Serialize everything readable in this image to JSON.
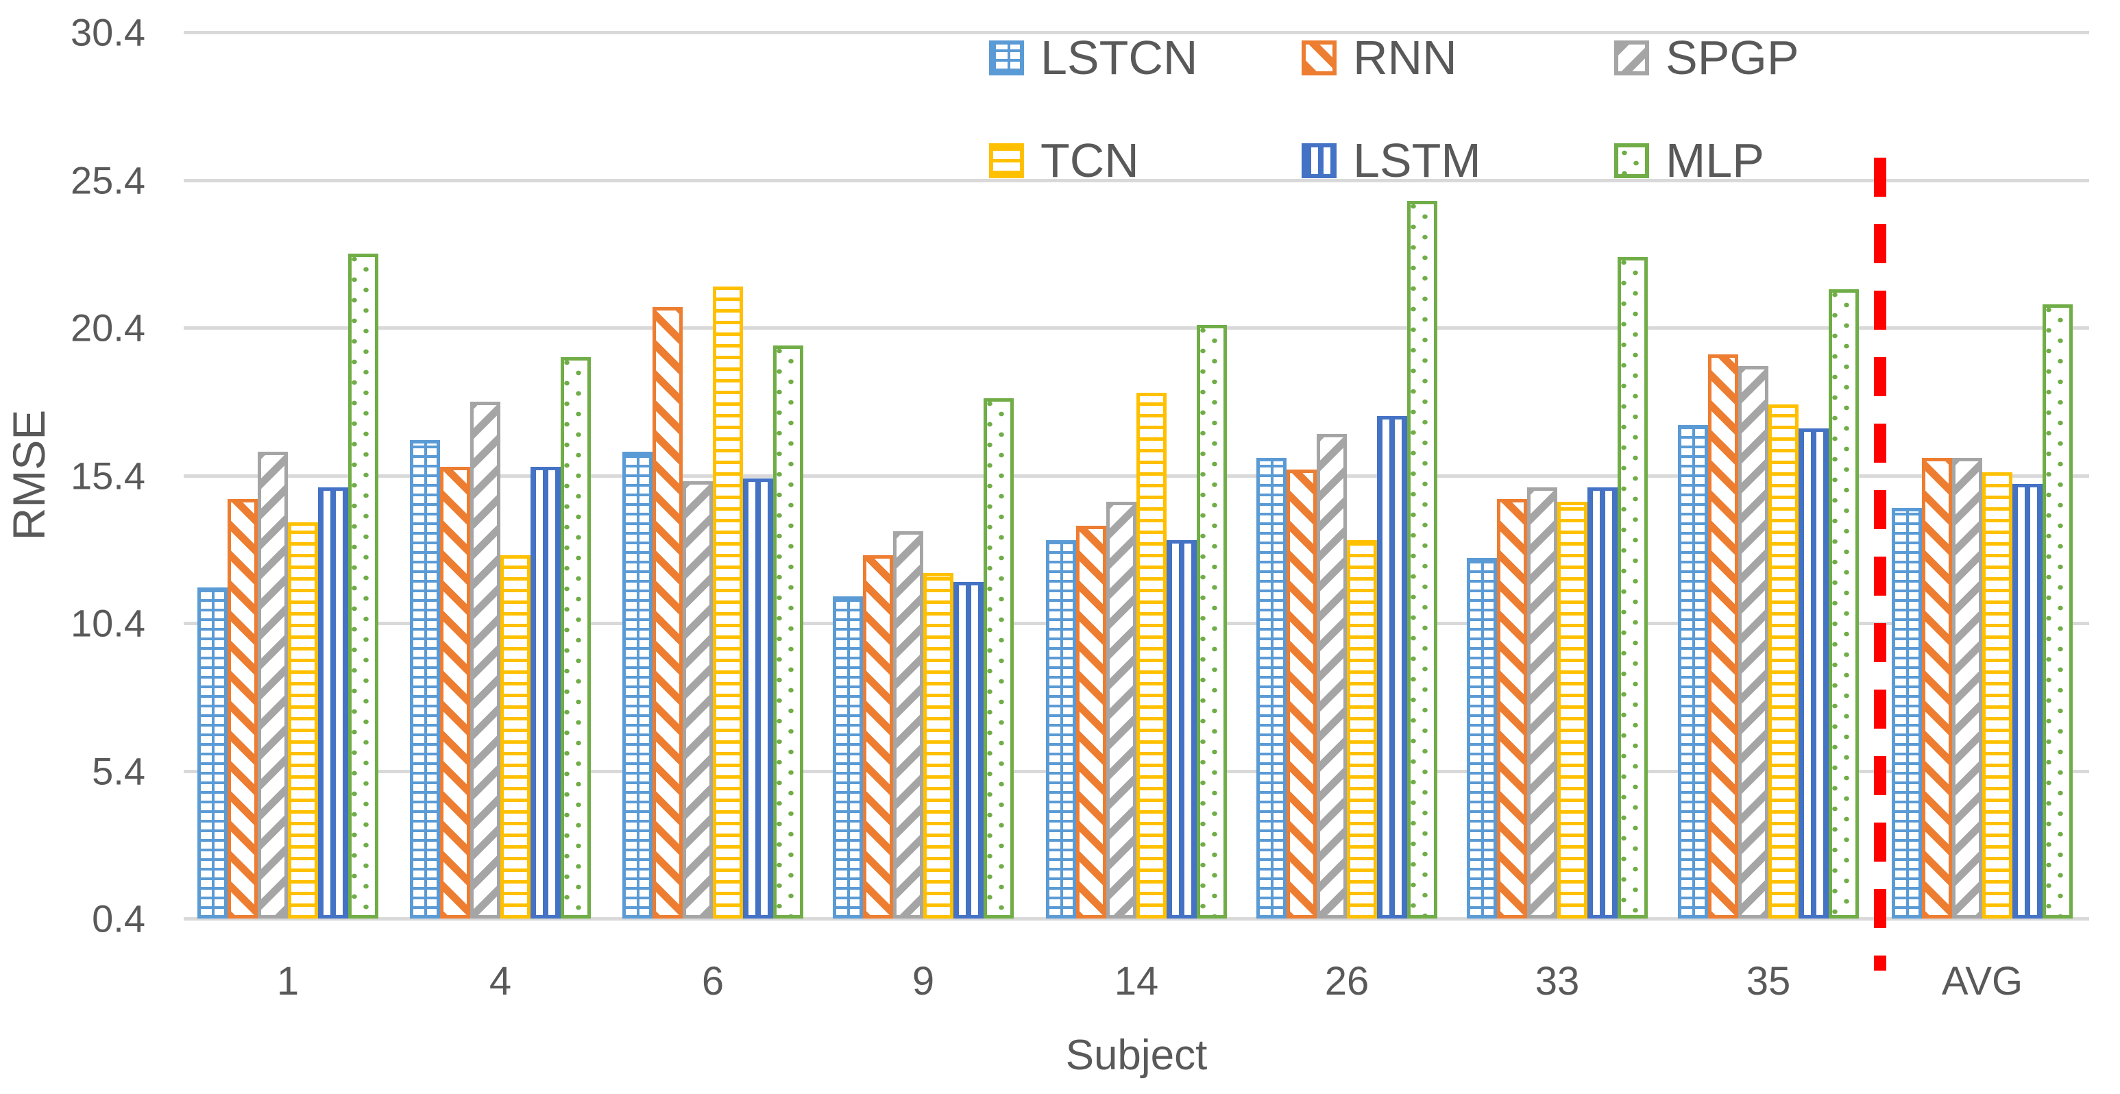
{
  "chart_data": {
    "type": "bar",
    "title": "",
    "xlabel": "Subject",
    "ylabel": "RMSE",
    "categories": [
      "1",
      "4",
      "6",
      "9",
      "14",
      "26",
      "33",
      "35",
      "AVG"
    ],
    "series": [
      {
        "name": "LSTCN",
        "color": "#5B9BD5",
        "pattern": "grid",
        "values": [
          11.6,
          16.6,
          16.2,
          11.3,
          13.2,
          16.0,
          12.6,
          17.1,
          14.3
        ]
      },
      {
        "name": "RNN",
        "color": "#ED7D31",
        "pattern": "diag-down",
        "values": [
          14.6,
          15.7,
          21.1,
          12.7,
          13.7,
          15.6,
          14.6,
          19.5,
          16.0
        ]
      },
      {
        "name": "SPGP",
        "color": "#A5A5A5",
        "pattern": "diag-up",
        "values": [
          16.2,
          17.9,
          15.2,
          13.5,
          14.5,
          16.8,
          15.0,
          19.1,
          16.0
        ]
      },
      {
        "name": "TCN",
        "color": "#FFC000",
        "pattern": "hlines",
        "values": [
          13.8,
          12.7,
          21.8,
          12.1,
          18.2,
          13.2,
          14.5,
          17.8,
          15.5
        ]
      },
      {
        "name": "LSTM",
        "color": "#4472C4",
        "pattern": "vlines",
        "values": [
          15.0,
          15.7,
          15.3,
          11.8,
          13.2,
          17.4,
          15.0,
          17.0,
          15.1
        ]
      },
      {
        "name": "MLP",
        "color": "#70AD47",
        "pattern": "dots",
        "values": [
          22.9,
          19.4,
          19.8,
          18.0,
          20.5,
          24.7,
          22.8,
          21.7,
          21.2
        ]
      }
    ],
    "y_ticks": [
      "0.4",
      "5.4",
      "10.4",
      "15.4",
      "20.4",
      "25.4",
      "30.4"
    ],
    "ylim": [
      0.4,
      30.4
    ],
    "grid": "horizontal gridlines on",
    "gridline_color": "#D9D9D9",
    "text_color": "#595959",
    "legend_position": "top-inside, two rows",
    "separator": {
      "after_category": "35",
      "color": "#FF0000",
      "style": "dashed vertical line"
    }
  }
}
